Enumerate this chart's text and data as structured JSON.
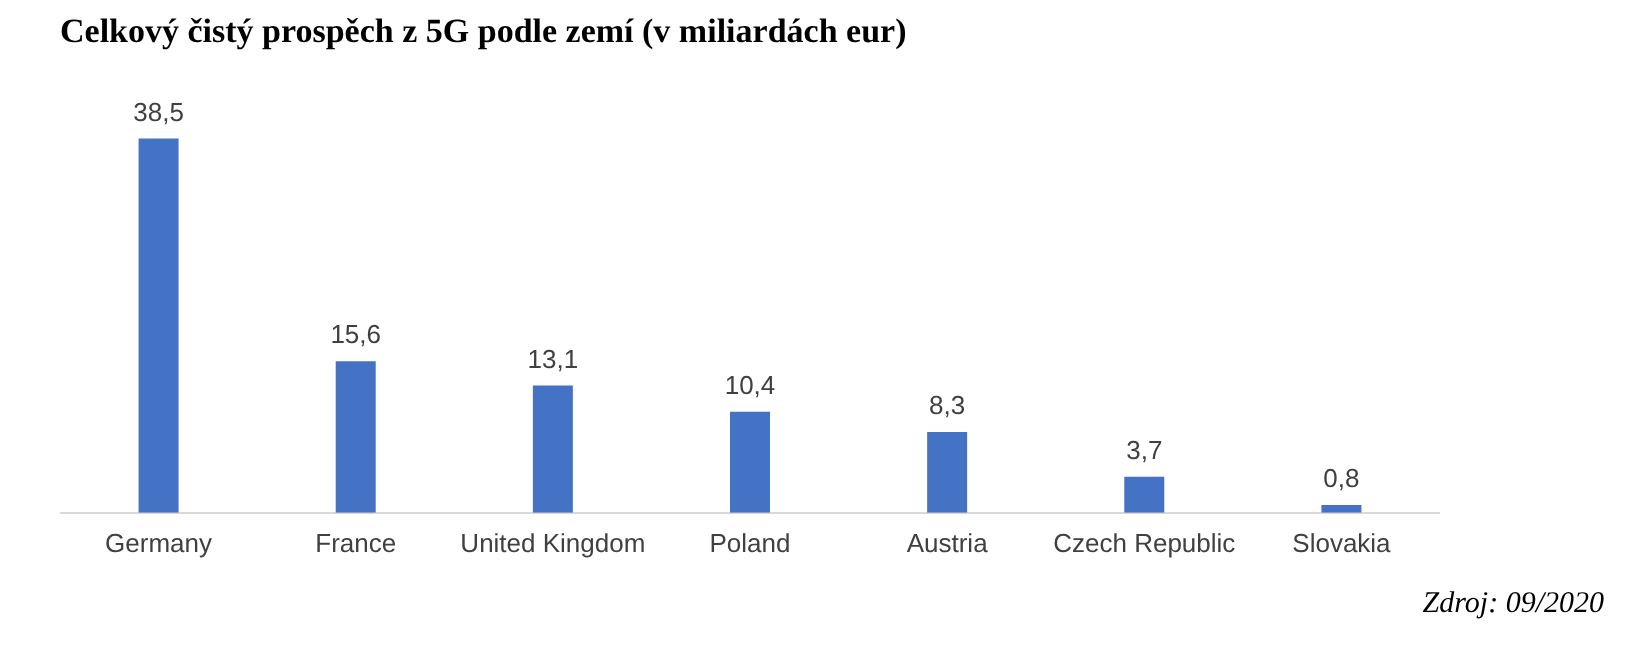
{
  "chart_data": {
    "type": "bar",
    "title": "Celkový čistý prospěch z 5G podle zemí (v miliardách eur)",
    "categories": [
      "Germany",
      "France",
      "United Kingdom",
      "Poland",
      "Austria",
      "Czech Republic",
      "Slovakia"
    ],
    "values": [
      38.5,
      15.6,
      13.1,
      10.4,
      8.3,
      3.7,
      0.8
    ],
    "value_labels": [
      "38,5",
      "15,6",
      "13,1",
      "10,4",
      "8,3",
      "3,7",
      "0,8"
    ],
    "color": "#4472c4",
    "grid": false,
    "legend": false,
    "annotations": [
      "Zdroj: 09/2020"
    ]
  }
}
